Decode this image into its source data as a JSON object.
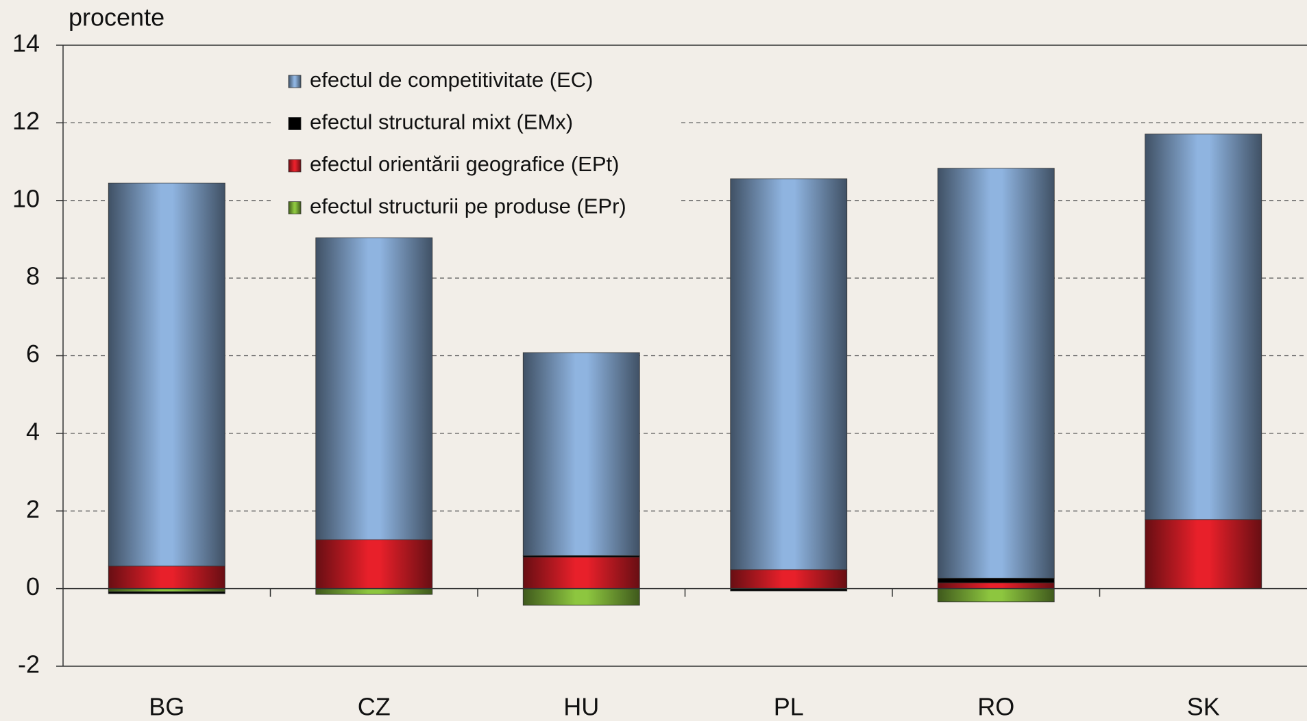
{
  "chart_data": {
    "type": "bar",
    "stacked": true,
    "y_label": "procente",
    "categories": [
      "BG",
      "CZ",
      "HU",
      "PL",
      "RO",
      "SK"
    ],
    "series": [
      {
        "name": "efectul de competitivitate (EC)",
        "color": "#8fb4e0",
        "values": [
          9.87,
          7.78,
          5.23,
          10.07,
          10.56,
          9.93
        ]
      },
      {
        "name": "efectul structural mixt (EMx)",
        "color": "#000000",
        "values": [
          -0.05,
          0,
          0.04,
          -0.06,
          0.12,
          0
        ]
      },
      {
        "name": "efectul orientării geografice (EPt)",
        "color": "#e8202a",
        "values": [
          0.58,
          1.26,
          0.81,
          0.49,
          0.15,
          1.78
        ]
      },
      {
        "name": "efectul structurii pe produse  (EPr)",
        "color": "#8dc63f",
        "values": [
          -0.08,
          -0.15,
          -0.43,
          0,
          -0.34,
          0
        ]
      }
    ],
    "ylim": [
      -2,
      14
    ],
    "yticks": [
      -2,
      0,
      2,
      4,
      6,
      8,
      10,
      12,
      14
    ],
    "grid": true
  }
}
